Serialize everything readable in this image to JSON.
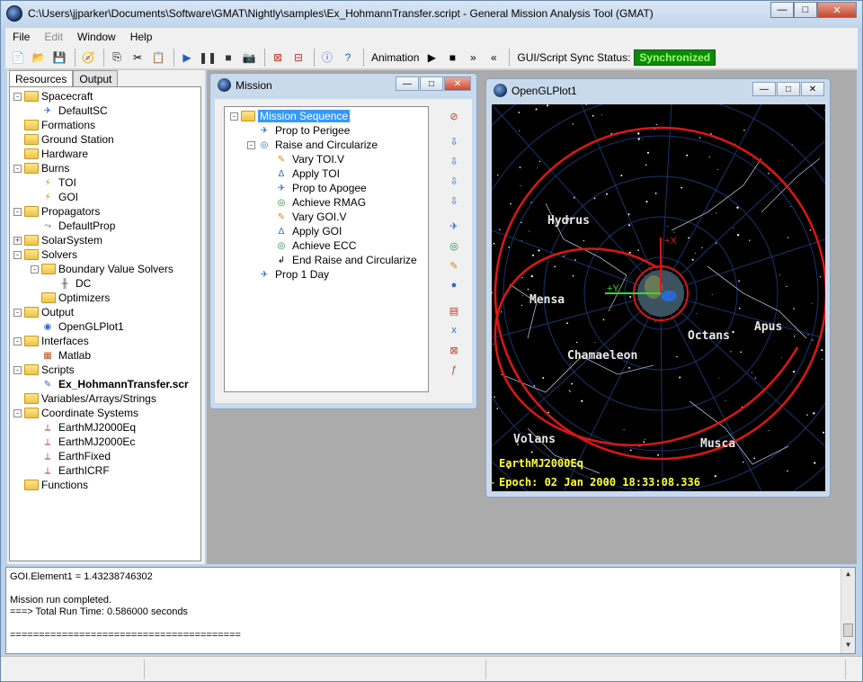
{
  "window": {
    "title": "C:\\Users\\jjparker\\Documents\\Software\\GMAT\\Nightly\\samples\\Ex_HohmannTransfer.script - General Mission Analysis Tool (GMAT)",
    "buttons": {
      "minimize": "—",
      "maximize": "□",
      "close": "✕"
    }
  },
  "menu": [
    {
      "label": "File",
      "enabled": true
    },
    {
      "label": "Edit",
      "enabled": false
    },
    {
      "label": "Window",
      "enabled": true
    },
    {
      "label": "Help",
      "enabled": true
    }
  ],
  "toolbar": {
    "animation_label": "Animation",
    "sync_label": "GUI/Script Sync Status:",
    "sync_status": "Synchronized",
    "sync_color": "#0b8a0b"
  },
  "resources": {
    "tabs": [
      "Resources",
      "Output"
    ],
    "items": [
      {
        "label": "Spacecraft",
        "kind": "folder",
        "indent": 0,
        "expander": "-"
      },
      {
        "label": "DefaultSC",
        "kind": "spacecraft-icon",
        "indent": 1
      },
      {
        "label": "Formations",
        "kind": "folder",
        "indent": 0
      },
      {
        "label": "Ground Station",
        "kind": "folder",
        "indent": 0
      },
      {
        "label": "Hardware",
        "kind": "folder",
        "indent": 0
      },
      {
        "label": "Burns",
        "kind": "folder",
        "indent": 0,
        "expander": "-"
      },
      {
        "label": "TOI",
        "kind": "burn-icon",
        "indent": 1
      },
      {
        "label": "GOI",
        "kind": "burn-icon",
        "indent": 1
      },
      {
        "label": "Propagators",
        "kind": "folder",
        "indent": 0,
        "expander": "-"
      },
      {
        "label": "DefaultProp",
        "kind": "propagator-icon",
        "indent": 1
      },
      {
        "label": "SolarSystem",
        "kind": "folder",
        "indent": 0,
        "expander": "+"
      },
      {
        "label": "Solvers",
        "kind": "folder",
        "indent": 0,
        "expander": "-"
      },
      {
        "label": "Boundary Value Solvers",
        "kind": "folder",
        "indent": 1,
        "expander": "-"
      },
      {
        "label": "DC",
        "kind": "solver-icon",
        "indent": 2
      },
      {
        "label": "Optimizers",
        "kind": "folder",
        "indent": 1
      },
      {
        "label": "Output",
        "kind": "folder",
        "indent": 0,
        "expander": "-"
      },
      {
        "label": "OpenGLPlot1",
        "kind": "plot-icon",
        "indent": 1
      },
      {
        "label": "Interfaces",
        "kind": "folder",
        "indent": 0,
        "expander": "-"
      },
      {
        "label": "Matlab",
        "kind": "matlab-icon",
        "indent": 1
      },
      {
        "label": "Scripts",
        "kind": "folder",
        "indent": 0,
        "expander": "-"
      },
      {
        "label": "Ex_HohmannTransfer.scr",
        "kind": "script-icon",
        "indent": 1,
        "bold": true
      },
      {
        "label": "Variables/Arrays/Strings",
        "kind": "folder",
        "indent": 0
      },
      {
        "label": "Coordinate Systems",
        "kind": "folder",
        "indent": 0,
        "expander": "-"
      },
      {
        "label": "EarthMJ2000Eq",
        "kind": "axes-icon",
        "indent": 1
      },
      {
        "label": "EarthMJ2000Ec",
        "kind": "axes-icon",
        "indent": 1
      },
      {
        "label": "EarthFixed",
        "kind": "axes-icon",
        "indent": 1
      },
      {
        "label": "EarthICRF",
        "kind": "axes-icon",
        "indent": 1
      },
      {
        "label": "Functions",
        "kind": "folder",
        "indent": 0
      }
    ]
  },
  "mission": {
    "title": "Mission",
    "items": [
      {
        "label": "Mission Sequence",
        "kind": "folder",
        "indent": 0,
        "expander": "-",
        "selected": true
      },
      {
        "label": "Prop to Perigee",
        "kind": "propagate-icon",
        "indent": 1
      },
      {
        "label": "Raise and Circularize",
        "kind": "target-icon",
        "indent": 1,
        "expander": "-"
      },
      {
        "label": "Vary TOI.V",
        "kind": "vary-icon",
        "indent": 2
      },
      {
        "label": "Apply TOI",
        "kind": "maneuver-icon",
        "indent": 2
      },
      {
        "label": "Prop to Apogee",
        "kind": "propagate-icon",
        "indent": 2
      },
      {
        "label": "Achieve RMAG",
        "kind": "achieve-icon",
        "indent": 2
      },
      {
        "label": "Vary GOI.V",
        "kind": "vary-icon",
        "indent": 2
      },
      {
        "label": "Apply GOI",
        "kind": "maneuver-icon",
        "indent": 2
      },
      {
        "label": "Achieve ECC",
        "kind": "achieve-icon",
        "indent": 2
      },
      {
        "label": "End Raise and Circularize",
        "kind": "end-icon",
        "indent": 2
      },
      {
        "label": "Prop 1 Day",
        "kind": "propagate-icon",
        "indent": 1
      }
    ]
  },
  "glplot": {
    "title": "OpenGLPlot1",
    "coord_system": "EarthMJ2000Eq",
    "epoch": "Epoch: 02 Jan 2000 18:33:08.336",
    "constellations": [
      "Hydrus",
      "Mensa",
      "Octans",
      "Apus",
      "Chamaeleon",
      "Volans",
      "Musca"
    ],
    "axis_labels": [
      "+X",
      "+Y"
    ]
  },
  "output": {
    "lines": [
      "GOI.Element1 = 1.43238746302",
      "",
      "Mission run completed.",
      "===> Total Run Time: 0.586000 seconds",
      "",
      "========================================"
    ]
  }
}
